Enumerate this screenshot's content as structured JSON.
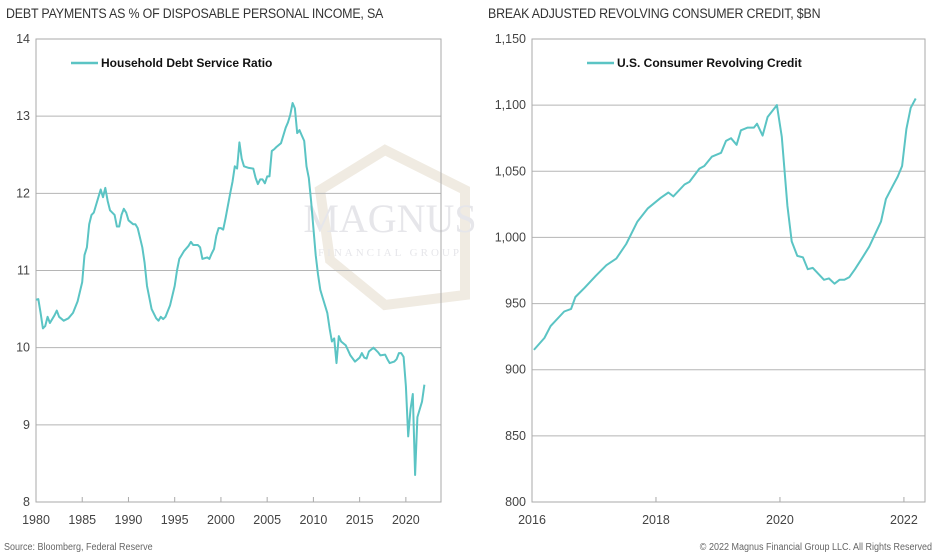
{
  "titles": {
    "left": "DEBT PAYMENTS AS % OF DISPOSABLE PERSONAL INCOME, SA",
    "right": "BREAK ADJUSTED REVOLVING CONSUMER CREDIT, $BN"
  },
  "footer": {
    "source": "Source: Bloomberg, Federal Reserve",
    "copyright": "© 2022 Magnus Financial Group LLC. All Rights Reserved"
  },
  "watermark": {
    "line1": "MAGNUS",
    "line2": "FINANCIAL GROUP"
  },
  "colors": {
    "line": "#5bc4c4",
    "grid": "#b5b5b5"
  },
  "chart_data": [
    {
      "type": "line",
      "title": "DEBT PAYMENTS AS % OF DISPOSABLE PERSONAL INCOME, SA",
      "legend": "Household Debt Service Ratio",
      "legend_position": "top-left",
      "xlim": [
        1980,
        2023.8
      ],
      "ylim": [
        8,
        14
      ],
      "xticks": [
        1980,
        1985,
        1990,
        1995,
        2000,
        2005,
        2010,
        2015,
        2020
      ],
      "xtick_labels": [
        "1980",
        "1985",
        "1990",
        "1995",
        "2000",
        "2005",
        "2010",
        "2015",
        "2020"
      ],
      "yticks": [
        8,
        9,
        10,
        11,
        12,
        13,
        14
      ],
      "ytick_labels": [
        "8",
        "9",
        "10",
        "11",
        "12",
        "13",
        "14"
      ],
      "grid": true,
      "x": [
        1980,
        1980.25,
        1980.5,
        1980.75,
        1981,
        1981.25,
        1981.5,
        1982,
        1982.25,
        1982.5,
        1983,
        1983.5,
        1984,
        1984.5,
        1985,
        1985.25,
        1985.5,
        1985.75,
        1986,
        1986.25,
        1986.5,
        1986.75,
        1987,
        1987.25,
        1987.5,
        1987.75,
        1988,
        1988.5,
        1988.75,
        1989,
        1989.25,
        1989.5,
        1989.75,
        1990,
        1990.5,
        1990.75,
        1991,
        1991.5,
        1991.75,
        1992,
        1992.5,
        1993,
        1993.25,
        1993.5,
        1993.75,
        1994,
        1994.5,
        1995,
        1995.25,
        1995.5,
        1995.75,
        1996,
        1996.5,
        1996.75,
        1997,
        1997.5,
        1997.75,
        1998,
        1998.5,
        1998.75,
        1999,
        1999.25,
        1999.5,
        1999.75,
        2000,
        2000.25,
        2000.5,
        2001,
        2001.25,
        2001.5,
        2001.75,
        2002,
        2002.25,
        2002.5,
        2003,
        2003.5,
        2003.75,
        2004,
        2004.25,
        2004.5,
        2004.75,
        2005,
        2005.25,
        2005.5,
        2005.75,
        2006,
        2006.5,
        2007,
        2007.25,
        2007.5,
        2007.75,
        2008,
        2008.25,
        2008.5,
        2008.75,
        2009,
        2009.25,
        2009.5,
        2009.75,
        2010,
        2010.25,
        2010.5,
        2010.75,
        2011,
        2011.5,
        2011.75,
        2012,
        2012.25,
        2012.5,
        2012.75,
        2013,
        2013.5,
        2014,
        2014.5,
        2015,
        2015.25,
        2015.5,
        2015.75,
        2016,
        2016.5,
        2017,
        2017.25,
        2017.75,
        2018,
        2018.25,
        2018.75,
        2019,
        2019.25,
        2019.5,
        2019.75,
        2020,
        2020.25,
        2020.5,
        2020.75,
        2021,
        2021.25,
        2021.5,
        2021.75,
        2022
      ],
      "values": [
        10.62,
        10.63,
        10.45,
        10.25,
        10.28,
        10.4,
        10.32,
        10.42,
        10.48,
        10.4,
        10.35,
        10.38,
        10.45,
        10.6,
        10.85,
        11.2,
        11.3,
        11.6,
        11.72,
        11.75,
        11.85,
        11.95,
        12.05,
        11.95,
        12.07,
        11.9,
        11.78,
        11.72,
        11.57,
        11.57,
        11.72,
        11.8,
        11.75,
        11.65,
        11.6,
        11.6,
        11.55,
        11.3,
        11.1,
        10.8,
        10.5,
        10.38,
        10.35,
        10.4,
        10.37,
        10.4,
        10.55,
        10.8,
        11.0,
        11.15,
        11.2,
        11.25,
        11.32,
        11.37,
        11.33,
        11.33,
        11.3,
        11.15,
        11.17,
        11.15,
        11.22,
        11.28,
        11.45,
        11.55,
        11.55,
        11.53,
        11.68,
        12.0,
        12.15,
        12.35,
        12.32,
        12.66,
        12.45,
        12.35,
        12.33,
        12.32,
        12.2,
        12.12,
        12.18,
        12.18,
        12.13,
        12.22,
        12.22,
        12.55,
        12.57,
        12.6,
        12.65,
        12.85,
        12.92,
        13.02,
        13.17,
        13.1,
        12.78,
        12.82,
        12.75,
        12.68,
        12.35,
        12.2,
        11.9,
        11.55,
        11.2,
        10.95,
        10.75,
        10.65,
        10.45,
        10.25,
        10.08,
        10.12,
        9.8,
        10.15,
        10.08,
        10.03,
        9.9,
        9.82,
        9.87,
        9.93,
        9.87,
        9.86,
        9.95,
        10.0,
        9.94,
        9.9,
        9.91,
        9.85,
        9.8,
        9.82,
        9.85,
        9.93,
        9.93,
        9.88,
        9.5,
        8.85,
        9.2,
        9.4,
        8.35,
        9.1,
        9.2,
        9.3,
        9.52
      ]
    },
    {
      "type": "line",
      "title": "BREAK ADJUSTED REVOLVING CONSUMER CREDIT, $BN",
      "legend": "U.S. Consumer Revolving Credit",
      "legend_position": "top-left",
      "xlim": [
        2016,
        2022.34
      ],
      "ylim": [
        800,
        1150
      ],
      "xticks": [
        2016,
        2018,
        2020,
        2022
      ],
      "xtick_labels": [
        "2016",
        "2018",
        "2020",
        "2022"
      ],
      "yticks": [
        800,
        850,
        900,
        950,
        1000,
        1050,
        1100,
        1150
      ],
      "ytick_labels": [
        "800",
        "850",
        "900",
        "950",
        "1,000",
        "1,050",
        "1,100",
        "1,150"
      ],
      "grid": true,
      "x": [
        2016.03,
        2016.2,
        2016.3,
        2016.52,
        2016.63,
        2016.7,
        2016.85,
        2017.03,
        2017.2,
        2017.36,
        2017.52,
        2017.7,
        2017.87,
        2018.08,
        2018.2,
        2018.28,
        2018.46,
        2018.54,
        2018.7,
        2018.78,
        2018.9,
        2019.05,
        2019.13,
        2019.21,
        2019.3,
        2019.37,
        2019.48,
        2019.58,
        2019.63,
        2019.72,
        2019.8,
        2019.95,
        2020.03,
        2020.12,
        2020.19,
        2020.28,
        2020.37,
        2020.45,
        2020.53,
        2020.71,
        2020.79,
        2020.88,
        2020.96,
        2021.04,
        2021.12,
        2021.21,
        2021.32,
        2021.44,
        2021.52,
        2021.63,
        2021.71,
        2021.82,
        2021.9,
        2021.97,
        2022.04,
        2022.11,
        2022.19
      ],
      "values": [
        915,
        924,
        933,
        944,
        946,
        955,
        962,
        971,
        979,
        984,
        995,
        1012,
        1022,
        1030,
        1034,
        1031,
        1040,
        1042,
        1052,
        1054,
        1061,
        1064,
        1073,
        1075,
        1070,
        1081,
        1083,
        1083,
        1086,
        1077,
        1091,
        1100,
        1076,
        1024,
        997,
        986,
        985,
        976,
        977,
        968,
        969,
        965,
        968,
        968,
        970,
        976,
        984,
        993,
        1001,
        1012,
        1029,
        1039,
        1046,
        1054,
        1082,
        1098,
        1105
      ]
    }
  ]
}
